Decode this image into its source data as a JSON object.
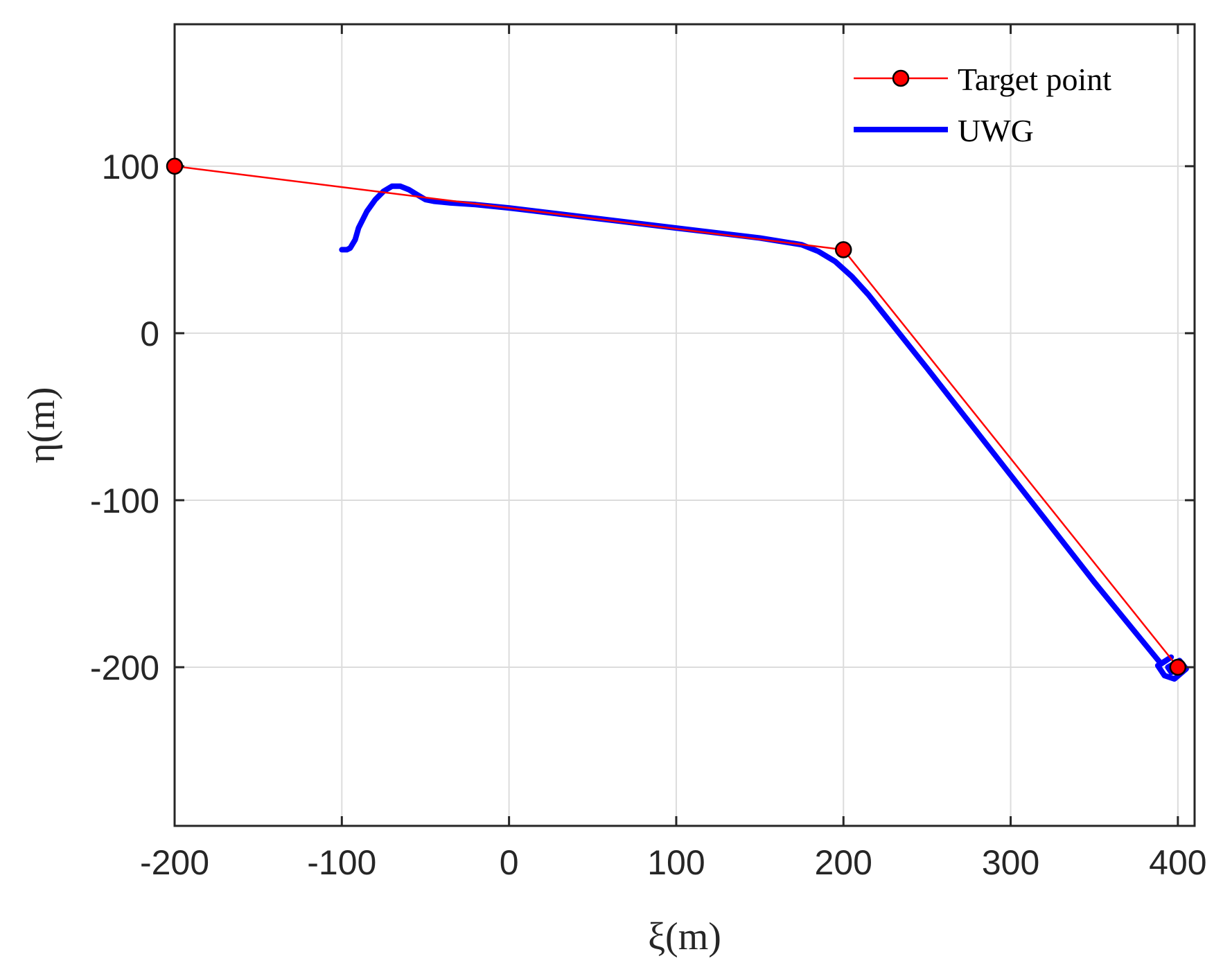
{
  "chart_data": {
    "type": "line",
    "xlabel": "ξ(m)",
    "ylabel": "η(m)",
    "xlim": [
      -200,
      410
    ],
    "ylim": [
      -295,
      185
    ],
    "xticks": [
      -200,
      -100,
      0,
      100,
      200,
      300,
      400
    ],
    "yticks": [
      -200,
      -100,
      0,
      100
    ],
    "grid": true,
    "legend_position": "top-right",
    "colors": {
      "target": "#ff0000",
      "marker_fill": "#ff0000",
      "marker_edge": "#000000",
      "uwg": "#0000ff",
      "grid": "#dcdcdc",
      "axis": "#262626"
    },
    "series": [
      {
        "name": "Target point",
        "style": "line-with-markers",
        "x": [
          -200,
          200,
          400
        ],
        "y": [
          100,
          50,
          -200
        ]
      },
      {
        "name": "UWG",
        "style": "thick-line",
        "x": [
          -100,
          -97,
          -95,
          -92,
          -90,
          -85,
          -80,
          -75,
          -70,
          -65,
          -60,
          -55,
          -50,
          -45,
          -35,
          -20,
          0,
          50,
          100,
          150,
          175,
          185,
          195,
          205,
          215,
          250,
          300,
          350,
          390,
          396,
          388,
          392,
          398,
          405,
          401,
          394,
          396,
          402
        ],
        "y": [
          50,
          50,
          51,
          56,
          63,
          73,
          80,
          85,
          88,
          88,
          86,
          83,
          80,
          79,
          78,
          77,
          75,
          69,
          63,
          57,
          53,
          49,
          43,
          34,
          23,
          -21,
          -85,
          -149,
          -198,
          -194,
          -199,
          -205,
          -207,
          -201,
          -196,
          -200,
          -203,
          -202
        ]
      }
    ]
  }
}
